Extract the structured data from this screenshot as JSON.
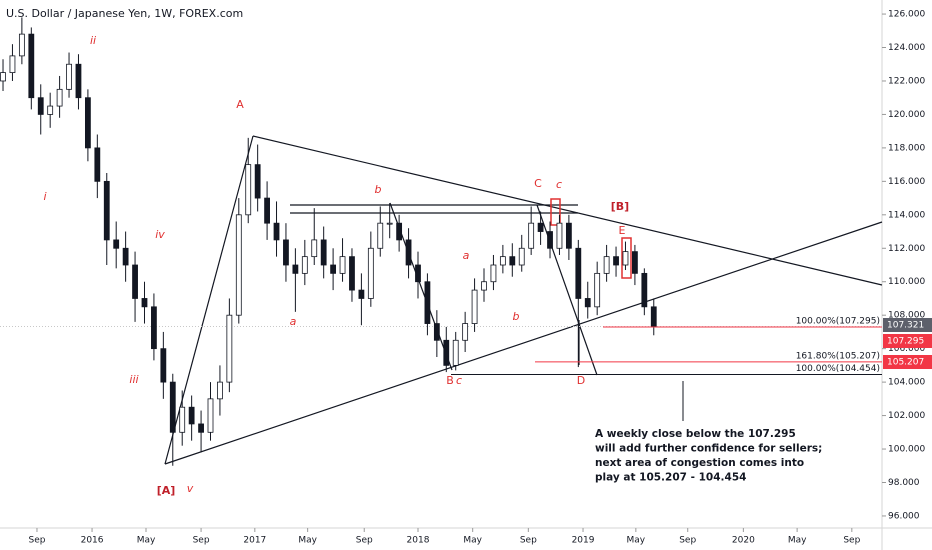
{
  "chart_data": {
    "type": "candlestick",
    "title": "U.S. Dollar / Japanese Yen, 1W, FOREX.com",
    "categories": [
      null,
      null,
      null,
      null,
      null,
      null,
      null,
      null,
      null,
      null,
      null,
      null,
      null,
      null,
      null,
      null,
      null,
      null,
      null,
      null,
      null,
      null,
      null,
      null,
      null,
      null,
      null,
      null,
      null,
      null,
      null,
      null,
      null,
      null,
      null,
      null,
      null,
      null,
      null,
      null,
      null,
      null,
      null,
      null,
      null,
      null,
      null,
      null,
      null,
      null,
      null,
      null,
      null,
      null,
      null,
      null,
      null,
      null,
      null,
      null,
      null,
      null,
      null,
      null,
      null,
      null,
      null,
      null,
      null,
      null
    ],
    "open": [
      122,
      122.5,
      123.5,
      124.8,
      121,
      120,
      120.5,
      121.5,
      123,
      121,
      118,
      116,
      112.5,
      112,
      111,
      109,
      108.5,
      106,
      104,
      101,
      102.5,
      101.5,
      101,
      103,
      104,
      108,
      114,
      117,
      115,
      113.5,
      112.5,
      111,
      110.5,
      111.5,
      112.5,
      111,
      110.5,
      111.5,
      109.5,
      109,
      112,
      113.5,
      113.5,
      112.5,
      111,
      110,
      107.5,
      106.5,
      105,
      106.5,
      107.5,
      109.5,
      110,
      111,
      111.5,
      111,
      112,
      113.5,
      113,
      112,
      113.5,
      112,
      109,
      108.5,
      110.5,
      111.5,
      111,
      111.8,
      110.5,
      108.5
    ],
    "high": [
      123.3,
      124.2,
      125.8,
      125.2,
      121.8,
      121.3,
      122.3,
      123.7,
      123.6,
      121.5,
      118.8,
      116.5,
      113.6,
      113,
      111.8,
      110,
      109.3,
      107,
      104.5,
      103.5,
      103.2,
      102.3,
      104,
      105,
      109,
      115,
      118.6,
      118.2,
      116,
      114.8,
      113.5,
      112,
      112.5,
      114.4,
      113.3,
      112,
      112.6,
      112,
      110.5,
      113,
      114.5,
      114.7,
      114,
      113.2,
      111.8,
      110.5,
      108.3,
      107.3,
      107,
      108.2,
      110.2,
      110.8,
      111.6,
      112.2,
      112.3,
      112.8,
      114.5,
      114.2,
      113.6,
      114,
      114,
      112.5,
      110,
      111.2,
      112.2,
      112.1,
      112.4,
      112.2,
      110.8,
      109
    ],
    "low": [
      121.4,
      122,
      123,
      120.3,
      118.8,
      119.2,
      119.8,
      121,
      120.3,
      117.2,
      115,
      111,
      110.8,
      110,
      107.6,
      107.5,
      105.3,
      103,
      99,
      100.2,
      100.5,
      99.8,
      100.5,
      102,
      103.4,
      107.5,
      113.5,
      114.2,
      112.5,
      111.5,
      110,
      108.2,
      109.8,
      111,
      110.2,
      109.5,
      110,
      108.8,
      107.4,
      108.5,
      111.5,
      112.6,
      111.8,
      110.2,
      109,
      106.8,
      105.5,
      104.6,
      104.7,
      105.8,
      107,
      108.8,
      109.5,
      110.5,
      110.3,
      110.6,
      111.6,
      112.2,
      111.4,
      111.6,
      111.3,
      104.9,
      107.8,
      108,
      110,
      110.3,
      110.7,
      109.8,
      108,
      106.8
    ],
    "close": [
      122.5,
      123.5,
      124.8,
      121,
      120,
      120.5,
      121.5,
      123,
      121,
      118,
      116,
      112.5,
      112,
      111,
      109,
      108.5,
      106,
      104,
      101,
      102.5,
      101.5,
      101,
      103,
      104,
      108,
      114,
      117,
      115,
      113.5,
      112.5,
      111,
      110.5,
      111.5,
      112.5,
      111,
      110.5,
      111.5,
      109.5,
      109,
      112,
      113.5,
      113.5,
      112.5,
      111,
      110,
      107.5,
      106.5,
      105,
      106.5,
      107.5,
      109.5,
      110,
      111,
      111.5,
      111,
      112,
      113.5,
      113,
      112,
      113.5,
      112,
      109,
      108.5,
      110.5,
      111.5,
      111,
      111.8,
      110.5,
      108.5,
      107.3
    ],
    "up_color": "#ffffff",
    "down_color": "#131722",
    "xlim": [
      -0.32,
      93.2
    ],
    "xticks": [
      {
        "value": 3.6,
        "label": "Sep"
      },
      {
        "value": 9.44,
        "label": "2016"
      },
      {
        "value": 15.16,
        "label": "May"
      },
      {
        "value": 21.0,
        "label": "Sep"
      },
      {
        "value": 26.7,
        "label": "2017"
      },
      {
        "value": 32.3,
        "label": "May"
      },
      {
        "value": 38.3,
        "label": "Sep"
      },
      {
        "value": 44.0,
        "label": "2018"
      },
      {
        "value": 49.8,
        "label": "May"
      },
      {
        "value": 55.7,
        "label": "Sep"
      },
      {
        "value": 61.5,
        "label": "2019"
      },
      {
        "value": 67.1,
        "label": "May"
      },
      {
        "value": 72.6,
        "label": "Sep"
      },
      {
        "value": 78.5,
        "label": "2020"
      },
      {
        "value": 84.2,
        "label": "May"
      },
      {
        "value": 90.0,
        "label": "Sep"
      }
    ],
    "ylim": [
      95.28,
      126.84
    ],
    "yticks": [
      {
        "value": 96,
        "label": "96.000"
      },
      {
        "value": 98,
        "label": "98.000"
      },
      {
        "value": 100,
        "label": "100.000"
      },
      {
        "value": 102,
        "label": "102.000"
      },
      {
        "value": 104,
        "label": "104.000"
      },
      {
        "value": 106,
        "label": "106.000"
      },
      {
        "value": 108,
        "label": "108.000"
      },
      {
        "value": 110,
        "label": "110.000"
      },
      {
        "value": 112,
        "label": "112.000"
      },
      {
        "value": 114,
        "label": "114.000"
      },
      {
        "value": 116,
        "label": "116.000"
      },
      {
        "value": 118,
        "label": "118.000"
      },
      {
        "value": 120,
        "label": "120.000"
      },
      {
        "value": 122,
        "label": "122.000"
      },
      {
        "value": 124,
        "label": "124.000"
      },
      {
        "value": 126,
        "label": "126.000"
      }
    ],
    "price_badges": [
      {
        "value": 107.321,
        "color": "#5d606b"
      },
      {
        "value": 107.295,
        "color": "#f23645"
      },
      {
        "value": 105.207,
        "color": "#f23645"
      }
    ],
    "levels": [
      {
        "label": "100.00%(107.295)",
        "value": 107.295,
        "color": "#f23645"
      },
      {
        "label": "161.80%(105.207)",
        "value": 105.207,
        "color": "#f23645"
      },
      {
        "label": "100.00%(104.454)",
        "value": 104.454,
        "color": "#131722"
      }
    ],
    "annotations": [
      "A",
      "[A]",
      "i",
      "ii",
      "iii",
      "iv",
      "v",
      "a",
      "b",
      "a",
      "b",
      "B",
      "c",
      "C",
      "c",
      "D",
      "E",
      "[B]"
    ],
    "note": [
      "A weekly close below the 107.295",
      "will add further confidence for sellers;",
      "next area of congestion comes into",
      "play at 105.207 - 104.454"
    ]
  }
}
